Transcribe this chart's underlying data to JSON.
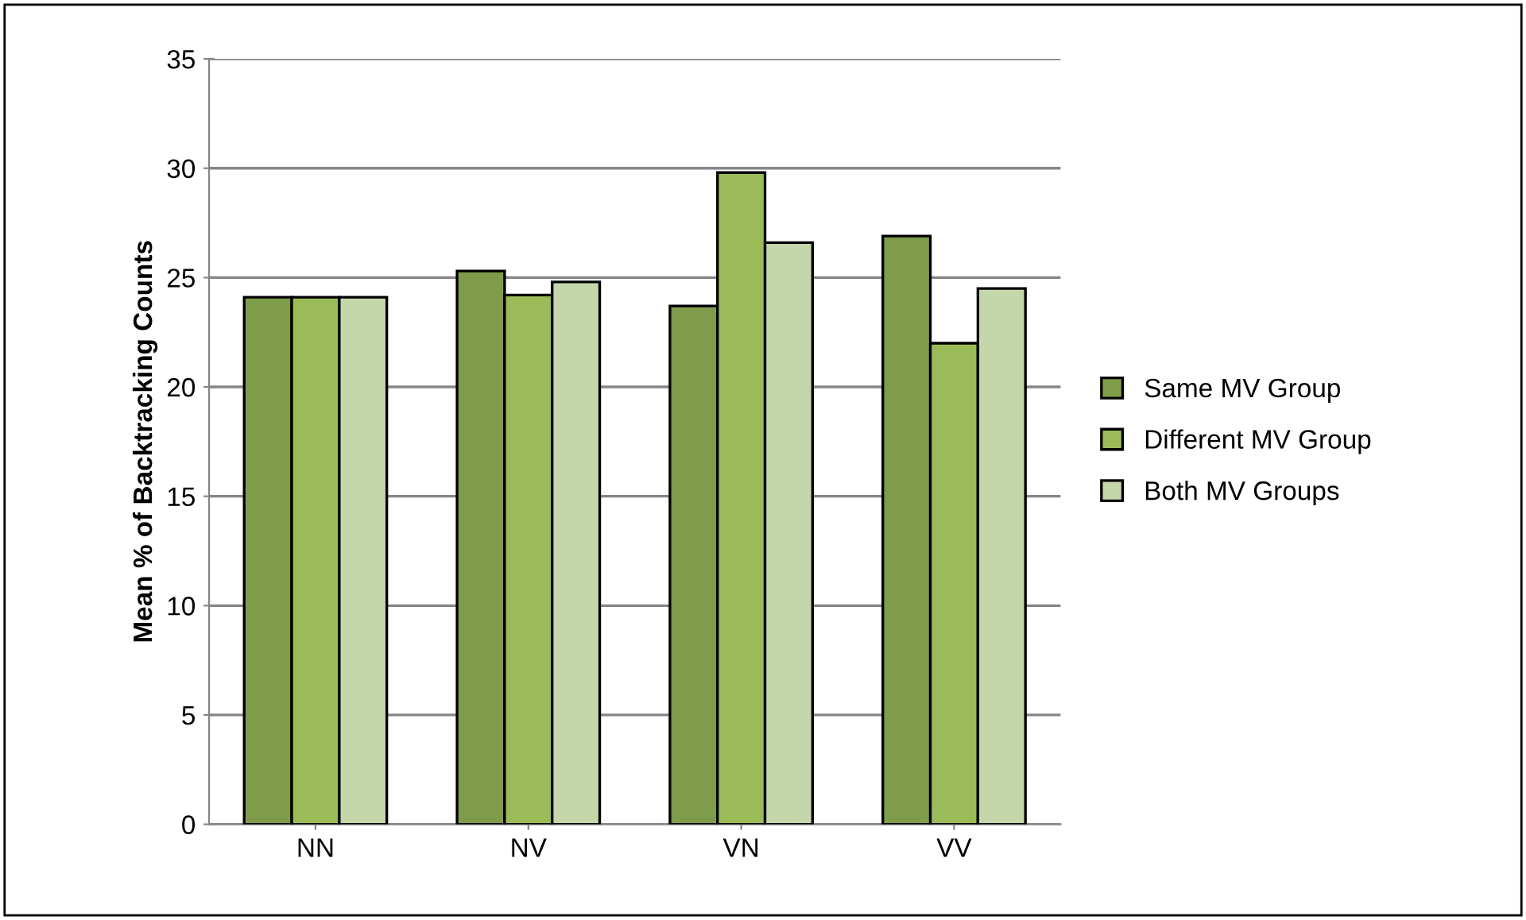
{
  "chart_data": {
    "type": "bar",
    "ylabel": "Mean % of Backtracking Counts",
    "categories": [
      "NN",
      "NV",
      "VN",
      "VV"
    ],
    "series": [
      {
        "name": "Same MV Group",
        "color": "#7f9c4a",
        "values": [
          24.1,
          25.3,
          23.7,
          26.9
        ]
      },
      {
        "name": "Different MV Group",
        "color": "#9bbb59",
        "values": [
          24.1,
          24.2,
          29.8,
          22.0
        ]
      },
      {
        "name": "Both MV Groups",
        "color": "#c4d6aa",
        "values": [
          24.1,
          24.8,
          26.6,
          24.5
        ]
      }
    ],
    "ylim": [
      0,
      35
    ],
    "yticks": [
      0,
      5,
      10,
      15,
      20,
      25,
      30,
      35
    ],
    "grid": "y",
    "legend": "right"
  }
}
